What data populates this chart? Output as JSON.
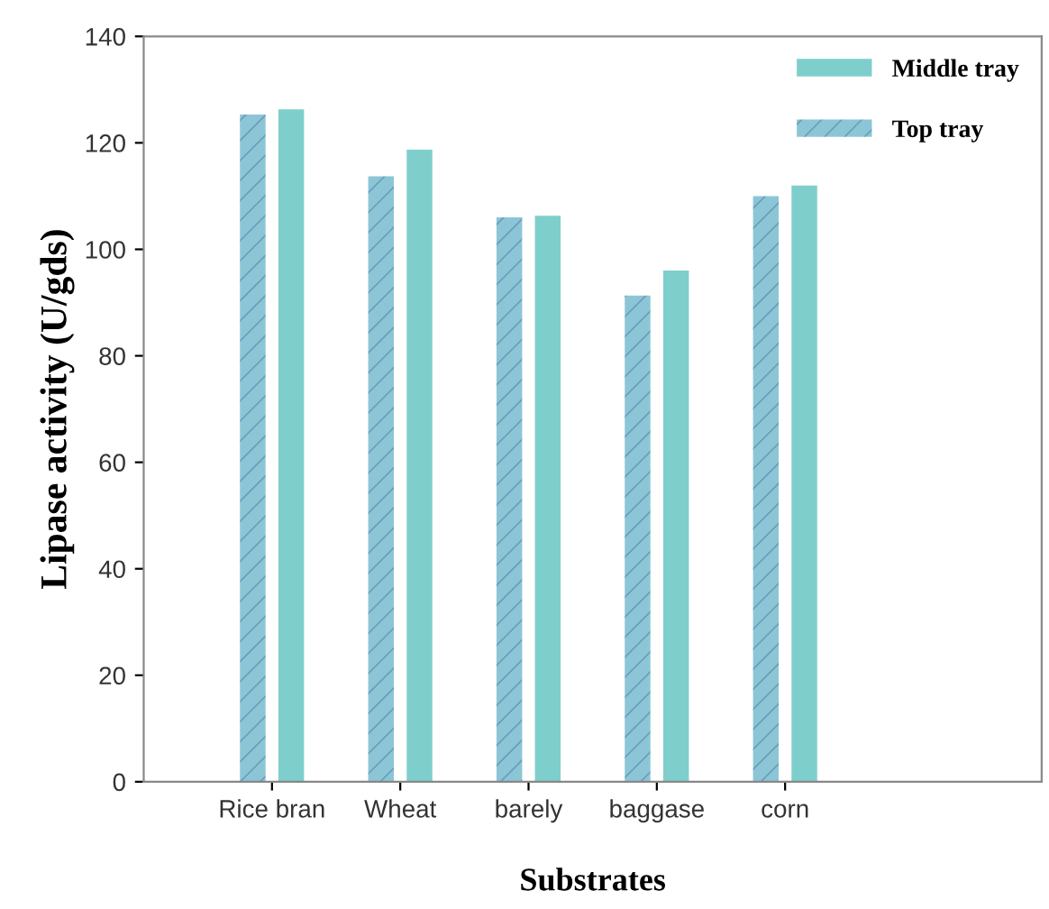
{
  "chart_data": {
    "type": "bar",
    "xlabel": "Substrates",
    "ylabel": "Lipase activity (U/gds)",
    "categories": [
      "Rice bran",
      "Wheat",
      "barely",
      "baggase",
      "corn"
    ],
    "series": [
      {
        "name": "Top tray",
        "color": "#8cc6d6",
        "values": [
          125.3,
          113.7,
          106,
          91.3,
          110
        ]
      },
      {
        "name": "Middle tray",
        "color": "#7ecfcc",
        "values": [
          126.3,
          118.7,
          106.3,
          96,
          112
        ]
      }
    ],
    "ylim": [
      0,
      140
    ],
    "yticks": [
      0,
      20,
      40,
      60,
      80,
      100,
      120,
      140
    ],
    "grid": false,
    "legend": "top right"
  }
}
